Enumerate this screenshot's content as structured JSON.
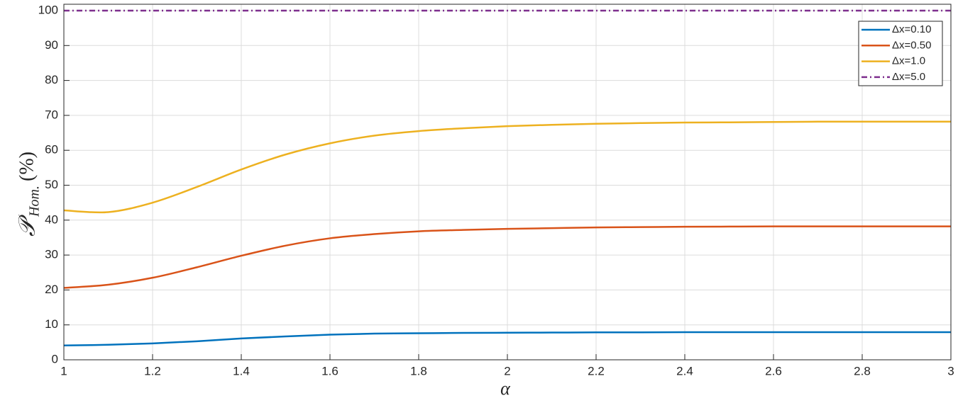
{
  "chart_data": {
    "type": "line",
    "xlabel": "α",
    "ylabel": "𝒫",
    "ylabel_subscript": "Hom.",
    "ylabel_unit": "(%)",
    "x": [
      1.0,
      1.1,
      1.2,
      1.3,
      1.4,
      1.5,
      1.6,
      1.7,
      1.8,
      1.9,
      2.0,
      2.1,
      2.2,
      2.3,
      2.4,
      2.5,
      2.6,
      2.7,
      2.8,
      2.9,
      3.0
    ],
    "series": [
      {
        "name": "Δx=0.10",
        "color": "#0072BD",
        "dash": "solid",
        "values": [
          4.1,
          4.3,
          4.7,
          5.3,
          6.1,
          6.7,
          7.2,
          7.5,
          7.6,
          7.7,
          7.75,
          7.8,
          7.85,
          7.85,
          7.9,
          7.9,
          7.9,
          7.9,
          7.9,
          7.9,
          7.9
        ]
      },
      {
        "name": "Δx=0.50",
        "color": "#D95319",
        "dash": "solid",
        "values": [
          20.6,
          21.5,
          23.5,
          26.5,
          29.8,
          32.7,
          34.8,
          36.0,
          36.8,
          37.2,
          37.5,
          37.7,
          37.9,
          38.0,
          38.1,
          38.15,
          38.2,
          38.2,
          38.2,
          38.2,
          38.2
        ]
      },
      {
        "name": "Δx=1.0",
        "color": "#EDB120",
        "dash": "solid",
        "values": [
          42.8,
          42.3,
          45.0,
          49.5,
          54.5,
          58.8,
          62.0,
          64.2,
          65.5,
          66.3,
          66.9,
          67.3,
          67.6,
          67.8,
          67.95,
          68.0,
          68.1,
          68.2,
          68.2,
          68.2,
          68.2
        ]
      },
      {
        "name": "Δx=5.0",
        "color": "#7E2F8E",
        "dash": "dashdot",
        "values": [
          100,
          100,
          100,
          100,
          100,
          100,
          100,
          100,
          100,
          100,
          100,
          100,
          100,
          100,
          100,
          100,
          100,
          100,
          100,
          100,
          100
        ]
      }
    ],
    "xlim": [
      1,
      3
    ],
    "xticks": [
      1,
      1.2,
      1.4,
      1.6,
      1.8,
      2,
      2.2,
      2.4,
      2.6,
      2.8,
      3
    ],
    "ylim": [
      0,
      100
    ],
    "yticks": [
      0,
      10,
      20,
      30,
      40,
      50,
      60,
      70,
      80,
      90,
      100
    ],
    "grid": true,
    "legend_position": "upper right"
  }
}
